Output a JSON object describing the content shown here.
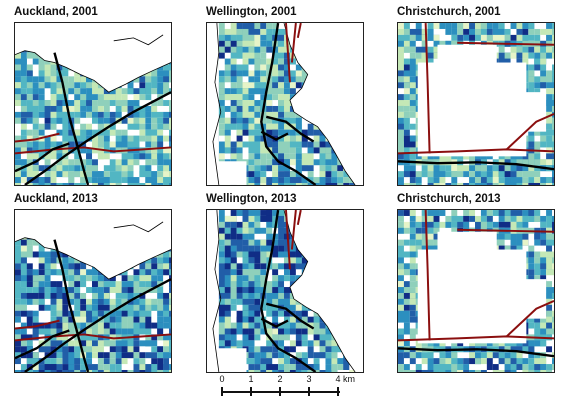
{
  "colors": {
    "density_ramp": [
      "#e6f4c8",
      "#c4e8b6",
      "#8fd0bb",
      "#52b6c3",
      "#2c8fbf",
      "#215ea8",
      "#102d86"
    ],
    "roads_major": "#000000",
    "roads_rail": "#8b0f0f",
    "coastline": "#000000"
  },
  "panels": [
    {
      "id": "akl-2001",
      "title": "Auckland, 2001",
      "city": "auckland",
      "intensity": 0.45
    },
    {
      "id": "wlg-2001",
      "title": "Wellington, 2001",
      "city": "wellington",
      "intensity": 0.55
    },
    {
      "id": "chc-2001",
      "title": "Christchurch, 2001",
      "city": "christchurch",
      "intensity": 0.5
    },
    {
      "id": "akl-2013",
      "title": "Auckland, 2013",
      "city": "auckland",
      "intensity": 0.75
    },
    {
      "id": "wlg-2013",
      "title": "Wellington, 2013",
      "city": "wellington",
      "intensity": 0.8
    },
    {
      "id": "chc-2013",
      "title": "Christchurch, 2013",
      "city": "christchurch",
      "intensity": 0.55
    }
  ],
  "scalebar": {
    "ticks": [
      "0",
      "1",
      "2",
      "3",
      "4"
    ],
    "unit": "km"
  }
}
